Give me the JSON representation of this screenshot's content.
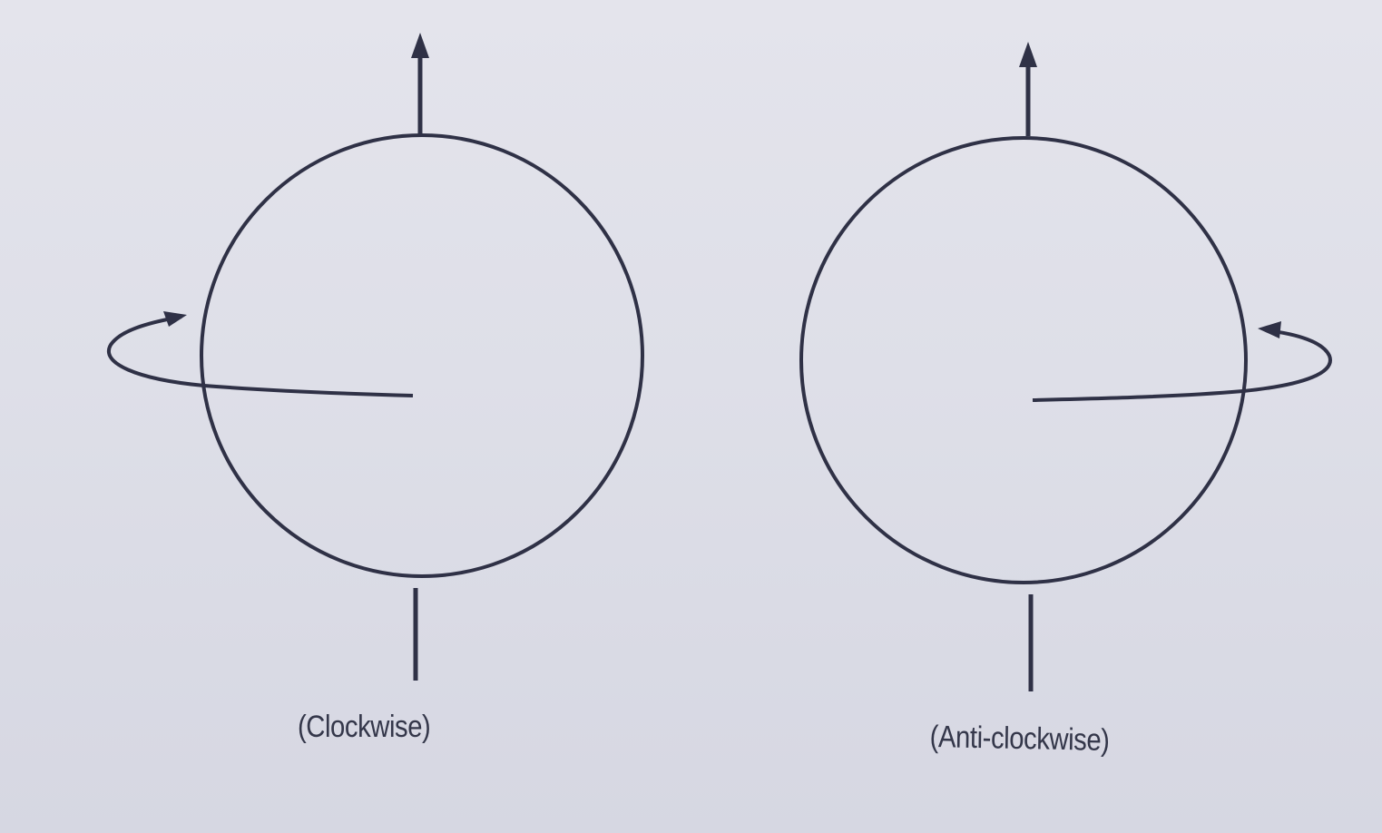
{
  "figures": [
    {
      "id": "left",
      "caption": "(Clockwise)"
    },
    {
      "id": "right",
      "caption": "(Anti-clockwise)"
    }
  ],
  "colors": {
    "ink": "#2f3146",
    "paper": "#dfe0e9"
  }
}
